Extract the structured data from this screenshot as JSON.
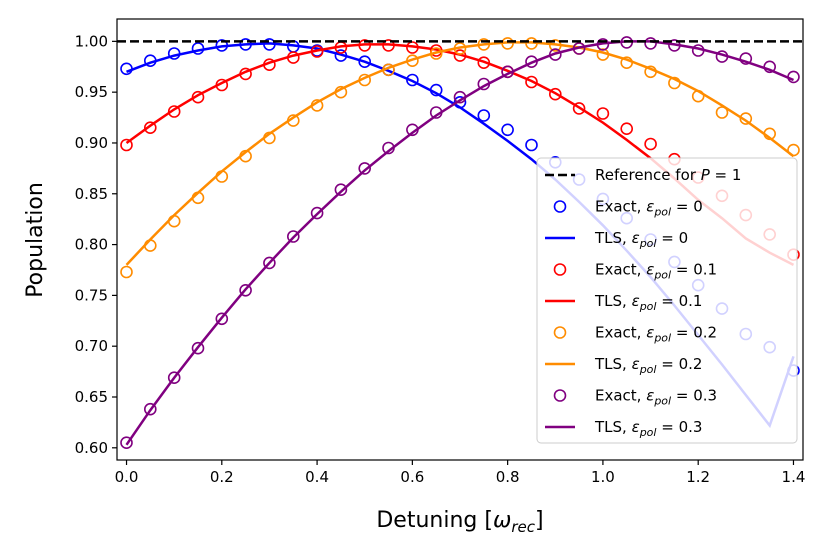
{
  "chart_data": {
    "type": "line",
    "title": "",
    "xlabel": "Detuning [ω_rec]",
    "xlabel_main": "Detuning [",
    "xlabel_symbol": "ω",
    "xlabel_sub": "rec",
    "xlabel_close": "]",
    "ylabel": "Population",
    "xlim": [
      -0.02,
      1.42
    ],
    "ylim": [
      0.588,
      1.022
    ],
    "xticks": [
      0.0,
      0.2,
      0.4,
      0.6,
      0.8,
      1.0,
      1.2,
      1.4
    ],
    "xtick_labels": [
      "0.0",
      "0.2",
      "0.4",
      "0.6",
      "0.8",
      "1.0",
      "1.2",
      "1.4"
    ],
    "yticks": [
      0.6,
      0.65,
      0.7,
      0.75,
      0.8,
      0.85,
      0.9,
      0.95,
      1.0
    ],
    "ytick_labels": [
      "0.60",
      "0.65",
      "0.70",
      "0.75",
      "0.80",
      "0.85",
      "0.90",
      "0.95",
      "1.00"
    ],
    "grid": false,
    "legend_position": "lower right",
    "reference": {
      "label_prefix": "Reference for ",
      "label_symbol": "P",
      "label_suffix": " = 1",
      "value": 1.0,
      "color": "#000000",
      "style": "dashed"
    },
    "x": [
      0.0,
      0.05,
      0.1,
      0.15,
      0.2,
      0.25,
      0.3,
      0.35,
      0.4,
      0.45,
      0.5,
      0.55,
      0.6,
      0.65,
      0.7,
      0.75,
      0.8,
      0.85,
      0.9,
      0.95,
      1.0,
      1.05,
      1.1,
      1.15,
      1.2,
      1.25,
      1.3,
      1.35,
      1.4
    ],
    "series": [
      {
        "name": "ε_pol = 0",
        "eps": "0",
        "color": "#0000ff",
        "exact": [
          0.973,
          0.981,
          0.988,
          0.993,
          0.996,
          0.997,
          0.997,
          0.995,
          0.991,
          0.986,
          0.98,
          0.972,
          0.962,
          0.952,
          0.94,
          0.927,
          0.913,
          0.898,
          0.881,
          0.864,
          0.845,
          0.826,
          0.805,
          0.783,
          0.76,
          0.737,
          0.712,
          0.699,
          0.676
        ],
        "tls": [
          0.97,
          0.979,
          0.986,
          0.991,
          0.995,
          0.997,
          0.998,
          0.996,
          0.993,
          0.987,
          0.98,
          0.971,
          0.961,
          0.949,
          0.935,
          0.919,
          0.902,
          0.884,
          0.864,
          0.842,
          0.819,
          0.794,
          0.768,
          0.74,
          0.711,
          0.682,
          0.652,
          0.622,
          0.69
        ]
      },
      {
        "name": "ε_pol = 0.1",
        "eps": "0.1",
        "color": "#ff0000",
        "exact": [
          0.898,
          0.915,
          0.931,
          0.945,
          0.957,
          0.968,
          0.977,
          0.984,
          0.99,
          0.994,
          0.996,
          0.996,
          0.994,
          0.991,
          0.986,
          0.979,
          0.97,
          0.96,
          0.948,
          0.934,
          0.929,
          0.914,
          0.899,
          0.884,
          0.866,
          0.848,
          0.829,
          0.81,
          0.79
        ],
        "tls": [
          0.9,
          0.917,
          0.933,
          0.947,
          0.959,
          0.97,
          0.979,
          0.986,
          0.991,
          0.995,
          0.997,
          0.997,
          0.995,
          0.992,
          0.987,
          0.98,
          0.971,
          0.961,
          0.949,
          0.935,
          0.92,
          0.903,
          0.885,
          0.865,
          0.844,
          0.826,
          0.806,
          0.792,
          0.78
        ]
      },
      {
        "name": "ε_pol = 0.2",
        "eps": "0.2",
        "color": "#ff8c00",
        "exact": [
          0.773,
          0.799,
          0.823,
          0.846,
          0.867,
          0.887,
          0.905,
          0.922,
          0.937,
          0.95,
          0.962,
          0.972,
          0.981,
          0.988,
          0.993,
          0.997,
          0.998,
          0.998,
          0.996,
          0.993,
          0.987,
          0.979,
          0.97,
          0.959,
          0.946,
          0.93,
          0.924,
          0.909,
          0.893
        ],
        "tls": [
          0.78,
          0.805,
          0.829,
          0.851,
          0.872,
          0.891,
          0.909,
          0.925,
          0.94,
          0.953,
          0.964,
          0.974,
          0.982,
          0.989,
          0.994,
          0.997,
          0.999,
          0.999,
          0.997,
          0.994,
          0.989,
          0.982,
          0.973,
          0.963,
          0.951,
          0.937,
          0.922,
          0.905,
          0.887
        ]
      },
      {
        "name": "ε_pol = 0.3",
        "eps": "0.3",
        "color": "#800080",
        "exact": [
          0.605,
          0.638,
          0.669,
          0.698,
          0.727,
          0.755,
          0.782,
          0.808,
          0.831,
          0.854,
          0.875,
          0.895,
          0.913,
          0.93,
          0.945,
          0.958,
          0.97,
          0.98,
          0.987,
          0.993,
          0.997,
          0.999,
          0.998,
          0.996,
          0.991,
          0.985,
          0.983,
          0.975,
          0.965
        ],
        "tls": [
          0.603,
          0.637,
          0.669,
          0.699,
          0.728,
          0.756,
          0.782,
          0.807,
          0.83,
          0.852,
          0.873,
          0.892,
          0.91,
          0.927,
          0.942,
          0.956,
          0.968,
          0.979,
          0.988,
          0.994,
          0.998,
          1.0,
          1.0,
          0.997,
          0.993,
          0.987,
          0.98,
          0.972,
          0.962
        ]
      }
    ],
    "legend_labels": {
      "exact_prefix": "Exact, ",
      "tls_prefix": "TLS, ",
      "symbol": "ε",
      "sub": "pol",
      "equals": " = "
    }
  }
}
